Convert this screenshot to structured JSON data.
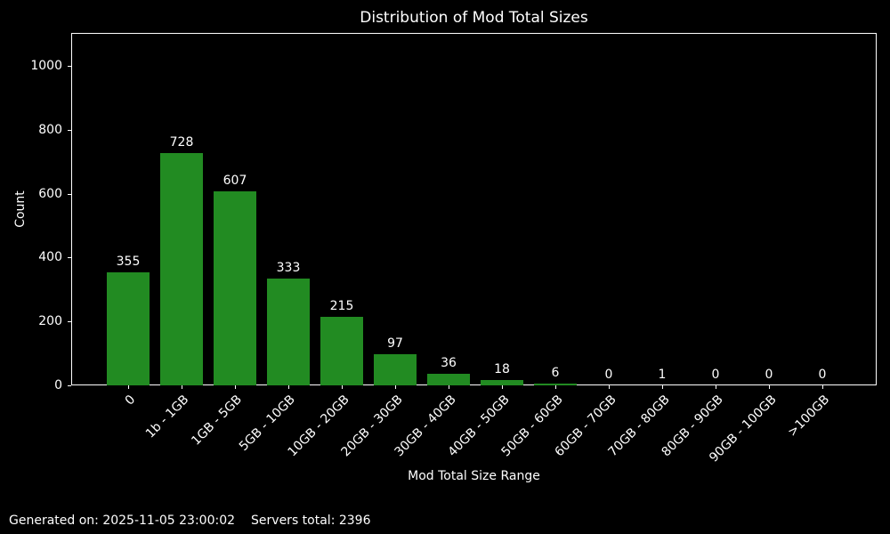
{
  "figure": {
    "background_color": "#000000",
    "text_color": "#ffffff"
  },
  "chart_data": {
    "type": "bar",
    "title": "Distribution of Mod Total Sizes",
    "xlabel": "Mod Total Size Range",
    "ylabel": "Count",
    "categories": [
      "0",
      "1b - 1GB",
      "1GB - 5GB",
      "5GB - 10GB",
      "10GB - 20GB",
      "20GB - 30GB",
      "30GB - 40GB",
      "40GB - 50GB",
      "50GB - 60GB",
      "60GB - 70GB",
      "70GB - 80GB",
      "80GB - 90GB",
      "90GB - 100GB",
      ">100GB"
    ],
    "values": [
      355,
      728,
      607,
      333,
      215,
      97,
      36,
      18,
      6,
      0,
      1,
      0,
      0,
      0
    ],
    "yticks": [
      0,
      200,
      400,
      600,
      800,
      1000
    ],
    "ylim": [
      0,
      1100
    ],
    "bar_color": "#228B22",
    "grid": false,
    "legend_position": "none",
    "value_labels_shown": true
  },
  "footer": {
    "generated": "Generated on: 2025-11-05 23:00:02",
    "servers_total": "Servers total: 2396"
  }
}
